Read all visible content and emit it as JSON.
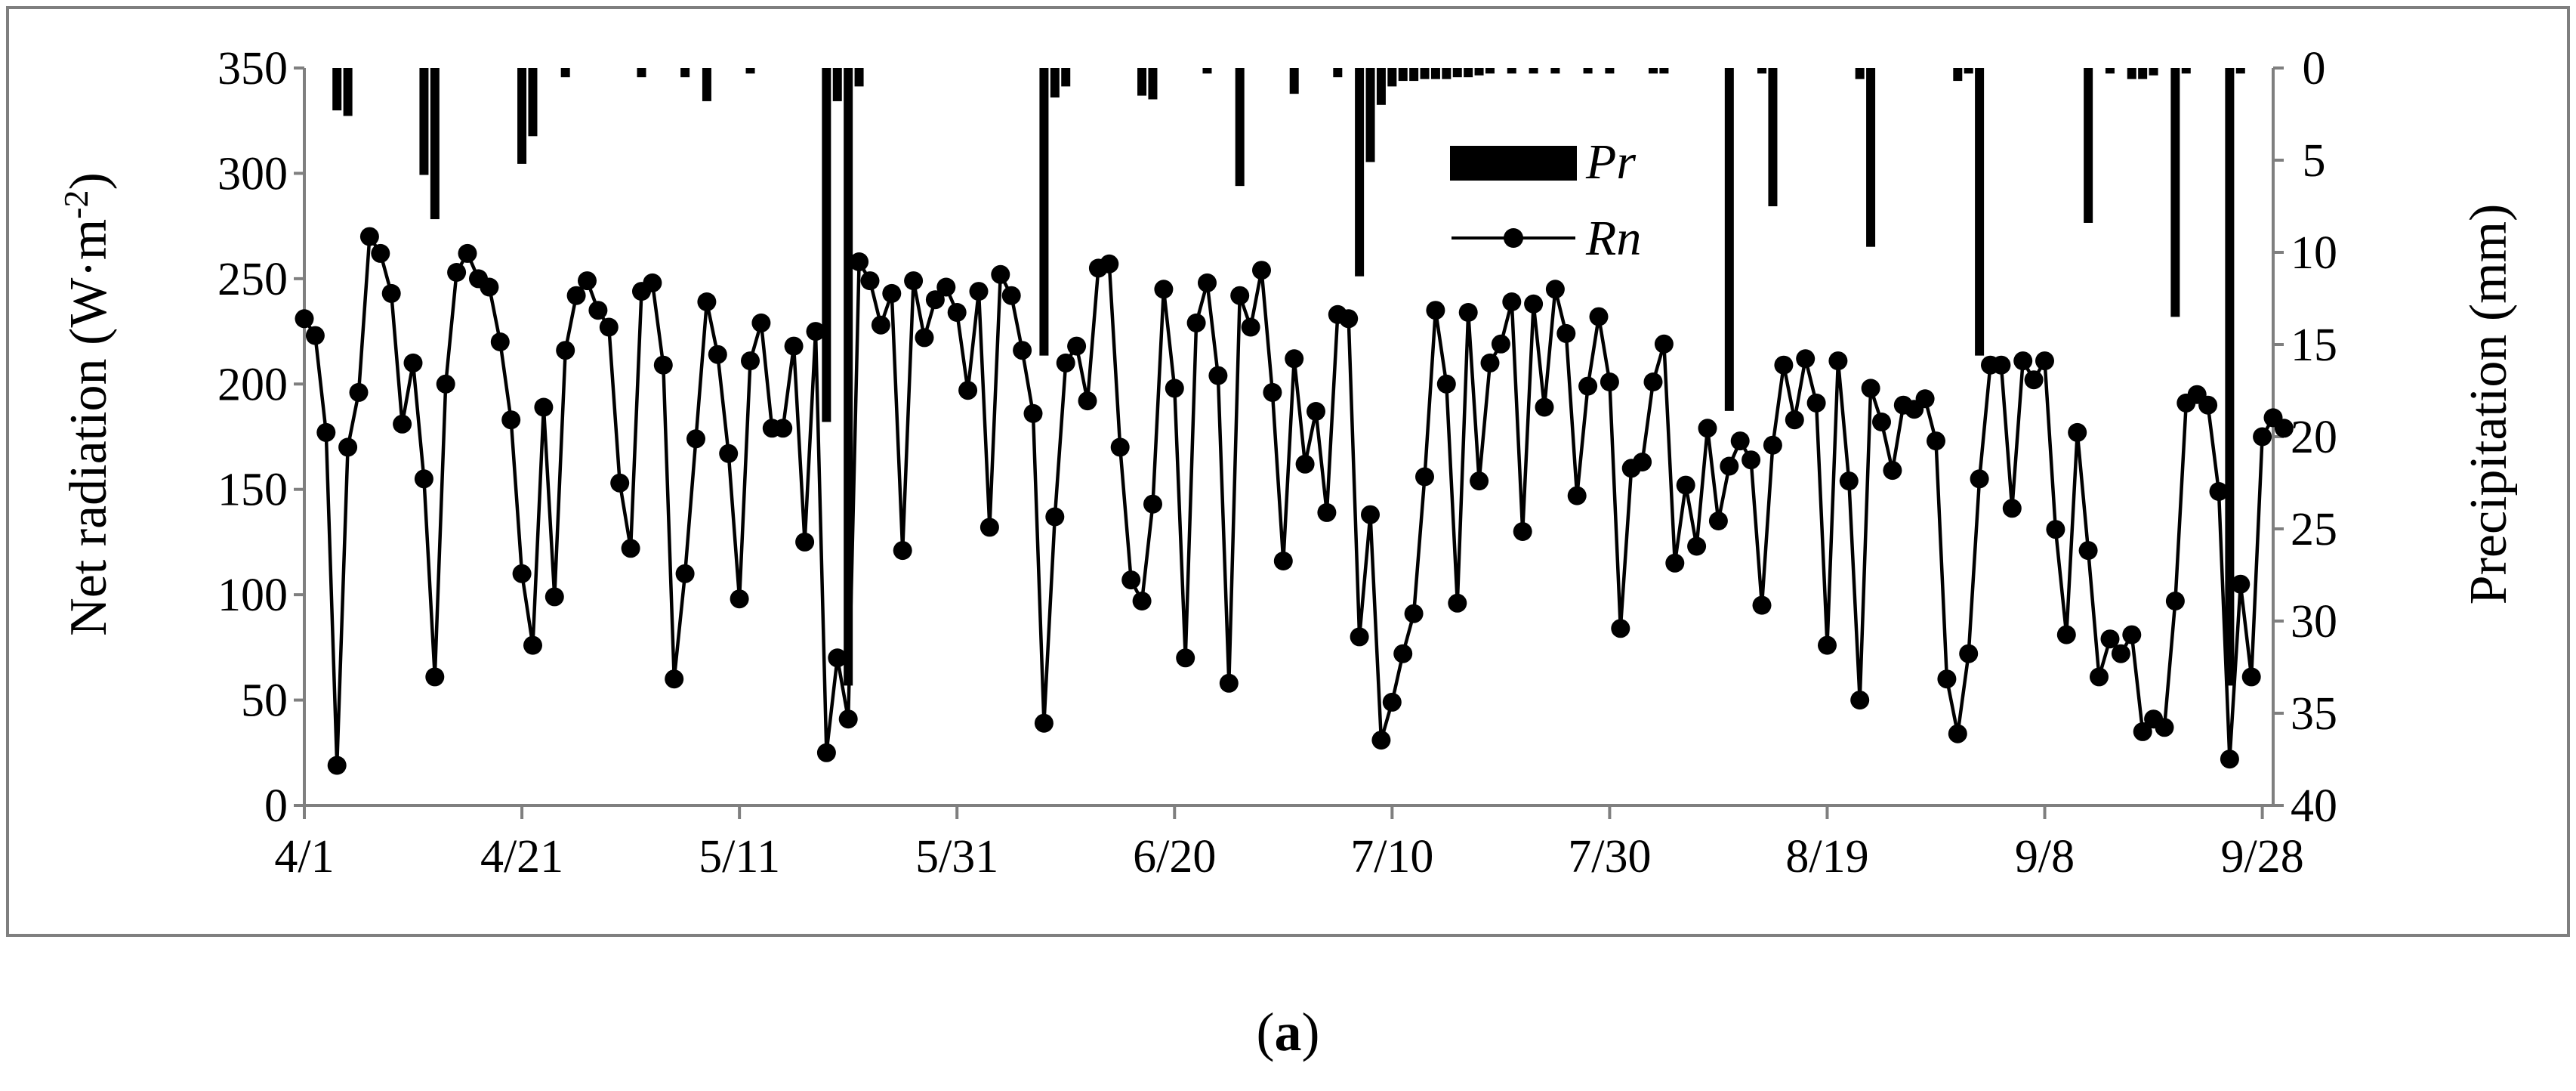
{
  "chart_data": {
    "type": "bar+line",
    "x_tick_labels": [
      "4/1",
      "4/21",
      "5/11",
      "5/31",
      "6/20",
      "7/10",
      "7/30",
      "8/19",
      "9/8",
      "9/28"
    ],
    "x_range_days": [
      0,
      181
    ],
    "y_left": {
      "label_main": "Net radiation (W·m",
      "label_sup": "-2",
      "label_end": ")",
      "ticks": [
        "0",
        "50",
        "100",
        "150",
        "200",
        "250",
        "300",
        "350"
      ],
      "range": [
        0,
        350
      ]
    },
    "y_right": {
      "label": "Precipitation (mm)",
      "ticks": [
        "0",
        "5",
        "10",
        "15",
        "20",
        "25",
        "30",
        "35",
        "40"
      ],
      "range": [
        0,
        40
      ],
      "inverted": true
    },
    "legend": {
      "pr": "Pr",
      "rn": "Rn",
      "placement": "top-center"
    },
    "series": [
      {
        "name": "Rn",
        "type": "line-markers",
        "values": [
          [
            0,
            231
          ],
          [
            1,
            223
          ],
          [
            2,
            177
          ],
          [
            3,
            19
          ],
          [
            4,
            170
          ],
          [
            5,
            196
          ],
          [
            6,
            270
          ],
          [
            7,
            262
          ],
          [
            8,
            243
          ],
          [
            9,
            181
          ],
          [
            10,
            210
          ],
          [
            11,
            155
          ],
          [
            12,
            61
          ],
          [
            13,
            200
          ],
          [
            14,
            253
          ],
          [
            15,
            262
          ],
          [
            16,
            250
          ],
          [
            17,
            246
          ],
          [
            18,
            220
          ],
          [
            19,
            183
          ],
          [
            20,
            110
          ],
          [
            21,
            76
          ],
          [
            22,
            189
          ],
          [
            23,
            99
          ],
          [
            24,
            216
          ],
          [
            25,
            242
          ],
          [
            26,
            249
          ],
          [
            27,
            235
          ],
          [
            28,
            227
          ],
          [
            29,
            153
          ],
          [
            30,
            122
          ],
          [
            31,
            244
          ],
          [
            32,
            248
          ],
          [
            33,
            209
          ],
          [
            34,
            60
          ],
          [
            35,
            110
          ],
          [
            36,
            174
          ],
          [
            37,
            239
          ],
          [
            38,
            214
          ],
          [
            39,
            167
          ],
          [
            40,
            98
          ],
          [
            41,
            211
          ],
          [
            42,
            229
          ],
          [
            43,
            179
          ],
          [
            44,
            179
          ],
          [
            45,
            218
          ],
          [
            46,
            125
          ],
          [
            47,
            225
          ],
          [
            48,
            25
          ],
          [
            49,
            70
          ],
          [
            50,
            41
          ],
          [
            51,
            258
          ],
          [
            52,
            249
          ],
          [
            53,
            228
          ],
          [
            54,
            243
          ],
          [
            55,
            121
          ],
          [
            56,
            249
          ],
          [
            57,
            222
          ],
          [
            58,
            240
          ],
          [
            59,
            246
          ],
          [
            60,
            234
          ],
          [
            61,
            197
          ],
          [
            62,
            244
          ],
          [
            63,
            132
          ],
          [
            64,
            252
          ],
          [
            65,
            242
          ],
          [
            66,
            216
          ],
          [
            67,
            186
          ],
          [
            68,
            39
          ],
          [
            69,
            137
          ],
          [
            70,
            210
          ],
          [
            71,
            218
          ],
          [
            72,
            192
          ],
          [
            73,
            255
          ],
          [
            74,
            257
          ],
          [
            75,
            170
          ],
          [
            76,
            107
          ],
          [
            77,
            97
          ],
          [
            78,
            143
          ],
          [
            79,
            245
          ],
          [
            80,
            198
          ],
          [
            81,
            70
          ],
          [
            82,
            229
          ],
          [
            83,
            248
          ],
          [
            84,
            204
          ],
          [
            85,
            58
          ],
          [
            86,
            242
          ],
          [
            87,
            227
          ],
          [
            88,
            254
          ],
          [
            89,
            196
          ],
          [
            90,
            116
          ],
          [
            91,
            212
          ],
          [
            92,
            162
          ],
          [
            93,
            187
          ],
          [
            94,
            139
          ],
          [
            95,
            233
          ],
          [
            96,
            231
          ],
          [
            97,
            80
          ],
          [
            98,
            138
          ],
          [
            99,
            31
          ],
          [
            100,
            49
          ],
          [
            101,
            72
          ],
          [
            102,
            91
          ],
          [
            103,
            156
          ],
          [
            104,
            235
          ],
          [
            105,
            200
          ],
          [
            106,
            96
          ],
          [
            107,
            234
          ],
          [
            108,
            154
          ],
          [
            109,
            210
          ],
          [
            110,
            219
          ],
          [
            111,
            239
          ],
          [
            112,
            130
          ],
          [
            113,
            238
          ],
          [
            114,
            189
          ],
          [
            115,
            245
          ],
          [
            116,
            224
          ],
          [
            117,
            147
          ],
          [
            118,
            199
          ],
          [
            119,
            232
          ],
          [
            120,
            201
          ],
          [
            121,
            84
          ],
          [
            122,
            160
          ],
          [
            123,
            163
          ],
          [
            124,
            201
          ],
          [
            125,
            219
          ],
          [
            126,
            115
          ],
          [
            127,
            152
          ],
          [
            128,
            123
          ],
          [
            129,
            179
          ],
          [
            130,
            135
          ],
          [
            131,
            161
          ],
          [
            132,
            173
          ],
          [
            133,
            164
          ],
          [
            134,
            95
          ],
          [
            135,
            171
          ],
          [
            136,
            209
          ],
          [
            137,
            183
          ],
          [
            138,
            212
          ],
          [
            139,
            191
          ],
          [
            140,
            76
          ],
          [
            141,
            211
          ],
          [
            142,
            154
          ],
          [
            143,
            50
          ],
          [
            144,
            198
          ],
          [
            145,
            182
          ],
          [
            146,
            159
          ],
          [
            147,
            190
          ],
          [
            148,
            188
          ],
          [
            149,
            193
          ],
          [
            150,
            173
          ],
          [
            151,
            60
          ],
          [
            152,
            34
          ],
          [
            153,
            72
          ],
          [
            154,
            155
          ],
          [
            155,
            209
          ],
          [
            156,
            209
          ],
          [
            157,
            141
          ],
          [
            158,
            211
          ],
          [
            159,
            202
          ],
          [
            160,
            211
          ],
          [
            161,
            131
          ],
          [
            162,
            81
          ],
          [
            163,
            177
          ],
          [
            164,
            121
          ],
          [
            165,
            61
          ],
          [
            166,
            79
          ],
          [
            167,
            72
          ],
          [
            168,
            81
          ],
          [
            169,
            35
          ],
          [
            170,
            41
          ],
          [
            171,
            37
          ],
          [
            172,
            97
          ],
          [
            173,
            191
          ],
          [
            174,
            195
          ],
          [
            175,
            190
          ],
          [
            176,
            149
          ],
          [
            177,
            22
          ],
          [
            178,
            105
          ],
          [
            179,
            61
          ],
          [
            180,
            175
          ],
          [
            181,
            184
          ],
          [
            182,
            179
          ]
        ]
      },
      {
        "name": "Pr",
        "type": "bar",
        "values": [
          [
            3,
            2.3
          ],
          [
            4,
            2.6
          ],
          [
            11,
            5.8
          ],
          [
            12,
            8.2
          ],
          [
            20,
            5.2
          ],
          [
            21,
            3.7
          ],
          [
            24,
            0.5
          ],
          [
            31,
            0.5
          ],
          [
            35,
            0.5
          ],
          [
            37,
            1.8
          ],
          [
            41,
            0.3
          ],
          [
            48,
            19.2
          ],
          [
            49,
            1.8
          ],
          [
            50,
            33.5
          ],
          [
            51,
            1.0
          ],
          [
            68,
            15.6
          ],
          [
            69,
            1.6
          ],
          [
            70,
            1.0
          ],
          [
            77,
            1.5
          ],
          [
            78,
            1.7
          ],
          [
            83,
            0.3
          ],
          [
            86,
            6.4
          ],
          [
            91,
            1.4
          ],
          [
            95,
            0.5
          ],
          [
            97,
            11.3
          ],
          [
            98,
            5.1
          ],
          [
            99,
            2.0
          ],
          [
            100,
            1.0
          ],
          [
            101,
            0.7
          ],
          [
            102,
            0.7
          ],
          [
            103,
            0.6
          ],
          [
            104,
            0.6
          ],
          [
            105,
            0.6
          ],
          [
            106,
            0.5
          ],
          [
            107,
            0.5
          ],
          [
            108,
            0.4
          ],
          [
            109,
            0.3
          ],
          [
            111,
            0.3
          ],
          [
            113,
            0.3
          ],
          [
            115,
            0.3
          ],
          [
            118,
            0.3
          ],
          [
            120,
            0.3
          ],
          [
            124,
            0.3
          ],
          [
            125,
            0.3
          ],
          [
            131,
            18.6
          ],
          [
            134,
            0.3
          ],
          [
            135,
            7.5
          ],
          [
            143,
            0.6
          ],
          [
            144,
            9.7
          ],
          [
            152,
            0.7
          ],
          [
            153,
            0.3
          ],
          [
            154,
            15.6
          ],
          [
            164,
            8.4
          ],
          [
            166,
            0.3
          ],
          [
            168,
            0.6
          ],
          [
            169,
            0.6
          ],
          [
            170,
            0.4
          ],
          [
            172,
            13.5
          ],
          [
            173,
            0.3
          ],
          [
            177,
            33.5
          ],
          [
            178,
            0.3
          ]
        ]
      }
    ]
  },
  "caption": {
    "open": "(",
    "letter": "a",
    "close": ")"
  }
}
